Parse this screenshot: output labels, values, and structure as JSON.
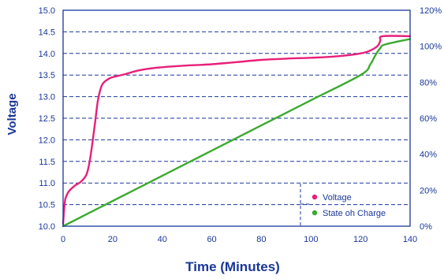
{
  "chart_data": {
    "type": "line",
    "xlabel": "Time (Minutes)",
    "ylabel": "Voltage",
    "xlim": [
      0,
      140
    ],
    "ylim": [
      10.0,
      15.0
    ],
    "y2lim": [
      0,
      120
    ],
    "x_ticks": [
      "0",
      "20",
      "40",
      "60",
      "80",
      "100",
      "120",
      "140"
    ],
    "y_ticks": [
      "10.0",
      "10.5",
      "11.0",
      "11.5",
      "12.0",
      "12.5",
      "13.0",
      "13.5",
      "14.0",
      "14.5",
      "15.0"
    ],
    "y2_ticks": [
      "0%",
      "20%",
      "40%",
      "60%",
      "80%",
      "100%",
      "120%"
    ],
    "grid": "horizontal dashed",
    "legend_position": "bottom-right",
    "series": [
      {
        "name": "Voltage",
        "axis": "left",
        "color": "#e8207a",
        "points": [
          [
            0,
            10.05
          ],
          [
            0.5,
            10.45
          ],
          [
            1,
            10.65
          ],
          [
            2,
            10.78
          ],
          [
            3,
            10.85
          ],
          [
            5,
            10.95
          ],
          [
            7,
            11.02
          ],
          [
            9,
            11.15
          ],
          [
            10,
            11.3
          ],
          [
            11,
            11.6
          ],
          [
            12,
            12.0
          ],
          [
            13,
            12.45
          ],
          [
            14,
            12.9
          ],
          [
            15,
            13.15
          ],
          [
            16,
            13.3
          ],
          [
            18,
            13.4
          ],
          [
            20,
            13.45
          ],
          [
            25,
            13.52
          ],
          [
            30,
            13.6
          ],
          [
            35,
            13.65
          ],
          [
            40,
            13.68
          ],
          [
            50,
            13.72
          ],
          [
            60,
            13.75
          ],
          [
            70,
            13.8
          ],
          [
            80,
            13.85
          ],
          [
            90,
            13.88
          ],
          [
            100,
            13.9
          ],
          [
            110,
            13.93
          ],
          [
            120,
            14.0
          ],
          [
            124,
            14.07
          ],
          [
            127,
            14.18
          ],
          [
            128,
            14.3
          ],
          [
            129,
            14.4
          ],
          [
            140,
            14.4
          ]
        ]
      },
      {
        "name": "State oh Charge",
        "axis": "right",
        "color": "#3aab2e",
        "points": [
          [
            0,
            0
          ],
          [
            20,
            14
          ],
          [
            40,
            28
          ],
          [
            60,
            42
          ],
          [
            80,
            56
          ],
          [
            100,
            70
          ],
          [
            120,
            84
          ],
          [
            124,
            90
          ],
          [
            126,
            95
          ],
          [
            128,
            99
          ],
          [
            130,
            101
          ],
          [
            140,
            104
          ]
        ]
      }
    ]
  }
}
